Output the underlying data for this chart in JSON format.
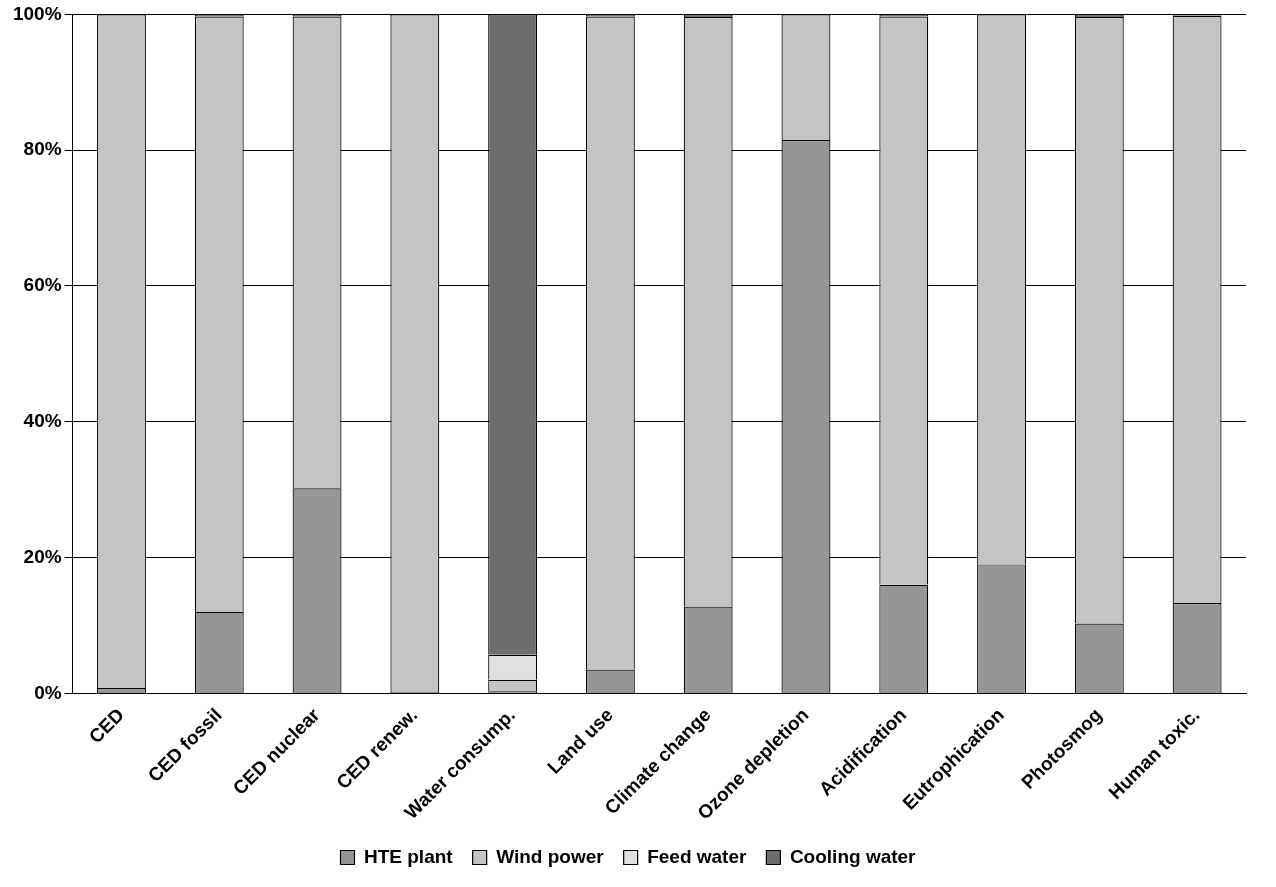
{
  "chart_data": {
    "type": "bar",
    "stacked": true,
    "categories": [
      "CED",
      "CED fossil",
      "CED nuclear",
      "CED renew.",
      "Water consump.",
      "Land use",
      "Climate change",
      "Ozone depletion",
      "Acidification",
      "Eutrophication",
      "Photosmog",
      "Human toxic."
    ],
    "series": [
      {
        "name": "HTE plant",
        "color": "#969696",
        "values": [
          0.8,
          12,
          30.2,
          0.2,
          0.3,
          3.5,
          12.8,
          81.5,
          16,
          19,
          10.3,
          13.3
        ]
      },
      {
        "name": "Wind power",
        "color": "#c4c4c4",
        "values": [
          99.2,
          87.7,
          69.5,
          99.8,
          1.7,
          96.2,
          86.8,
          18.5,
          83.7,
          81,
          89.3,
          86.5
        ]
      },
      {
        "name": "Feed water",
        "color": "#e0e0e0",
        "values": [
          null,
          null,
          null,
          null,
          3.7,
          null,
          null,
          null,
          null,
          null,
          null,
          null
        ]
      },
      {
        "name": "Cooling water",
        "color": "#6e6e6e",
        "values": [
          null,
          0.3,
          0.3,
          null,
          94.3,
          0.3,
          0.4,
          null,
          0.3,
          null,
          0.4,
          0.2
        ]
      }
    ],
    "ylim": [
      0,
      100
    ],
    "yticks": [
      {
        "value": 0,
        "label": "0%"
      },
      {
        "value": 20,
        "label": "20%"
      },
      {
        "value": 40,
        "label": "40%"
      },
      {
        "value": 60,
        "label": "60%"
      },
      {
        "value": 80,
        "label": "80%"
      },
      {
        "value": 100,
        "label": "100%"
      }
    ],
    "grid": "y",
    "legend": "bottom"
  }
}
